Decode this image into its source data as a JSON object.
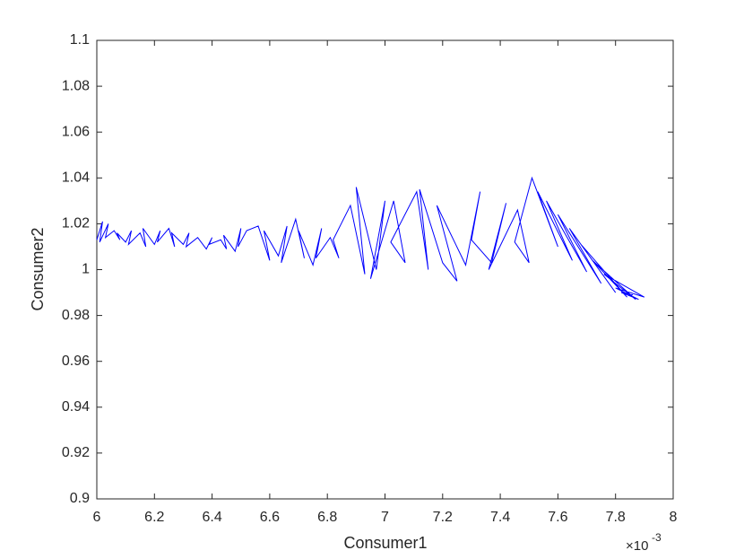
{
  "chart_data": {
    "type": "line",
    "x_label": "Consumer1",
    "y_label": "Consumer2",
    "x_multiplier": "×10",
    "x_multiplier_exponent": "-3",
    "xlim": [
      6,
      8
    ],
    "xticks": [
      6,
      6.2,
      6.4,
      6.6,
      6.8,
      7,
      7.2,
      7.4,
      7.6,
      7.8,
      8
    ],
    "ylim": [
      0.9,
      1.1
    ],
    "yticks": [
      0.9,
      0.92,
      0.94,
      0.96,
      0.98,
      1,
      1.02,
      1.04,
      1.06,
      1.08,
      1.1
    ],
    "grid": false,
    "x": [
      6.0,
      6.02,
      6.01,
      6.04,
      6.03,
      6.06,
      6.08,
      6.07,
      6.1,
      6.12,
      6.11,
      6.15,
      6.17,
      6.16,
      6.2,
      6.22,
      6.21,
      6.25,
      6.27,
      6.26,
      6.3,
      6.32,
      6.31,
      6.35,
      6.38,
      6.4,
      6.39,
      6.43,
      6.45,
      6.44,
      6.48,
      6.5,
      6.49,
      6.52,
      6.56,
      6.6,
      6.58,
      6.63,
      6.66,
      6.64,
      6.69,
      6.72,
      6.7,
      6.75,
      6.78,
      6.76,
      6.81,
      6.84,
      6.82,
      6.88,
      6.93,
      6.9,
      6.97,
      7.0,
      6.95,
      7.03,
      7.07,
      7.02,
      7.11,
      7.15,
      7.12,
      7.2,
      7.25,
      7.18,
      7.28,
      7.33,
      7.3,
      7.37,
      7.42,
      7.36,
      7.46,
      7.5,
      7.45,
      7.51,
      7.6,
      7.53,
      7.65,
      7.56,
      7.7,
      7.6,
      7.75,
      7.64,
      7.8,
      7.68,
      7.84,
      7.72,
      7.87,
      7.76,
      7.9,
      7.8,
      7.88,
      7.82,
      7.86
    ],
    "series": [
      {
        "color": "#0000ff",
        "values": [
          1.013,
          1.021,
          1.012,
          1.02,
          1.014,
          1.017,
          1.013,
          1.016,
          1.012,
          1.017,
          1.011,
          1.016,
          1.01,
          1.018,
          1.011,
          1.017,
          1.012,
          1.018,
          1.01,
          1.016,
          1.011,
          1.016,
          1.01,
          1.014,
          1.009,
          1.014,
          1.011,
          1.013,
          1.009,
          1.015,
          1.008,
          1.018,
          1.01,
          1.017,
          1.019,
          1.004,
          1.017,
          1.006,
          1.019,
          1.003,
          1.022,
          1.005,
          1.017,
          1.002,
          1.018,
          1.005,
          1.014,
          1.005,
          1.013,
          1.028,
          0.998,
          1.036,
          1.0,
          1.03,
          0.996,
          1.03,
          1.003,
          1.012,
          1.034,
          1.0,
          1.035,
          1.003,
          0.995,
          1.028,
          1.002,
          1.034,
          1.013,
          1.003,
          1.029,
          1.0,
          1.026,
          1.003,
          1.012,
          1.04,
          1.01,
          1.034,
          1.004,
          1.03,
          0.999,
          1.024,
          0.994,
          1.018,
          0.99,
          1.011,
          0.988,
          1.004,
          0.987,
          0.998,
          0.988,
          0.992,
          0.987,
          0.99,
          0.989
        ]
      }
    ]
  }
}
